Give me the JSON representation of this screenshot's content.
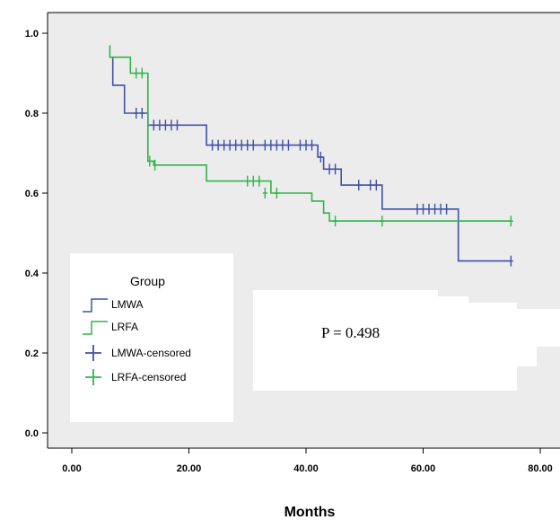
{
  "chart_data": {
    "type": "line",
    "subtype": "kaplan-meier",
    "title": "",
    "xlabel": "Months",
    "ylabel": "",
    "xlim": [
      -5,
      80
    ],
    "ylim": [
      -0.05,
      1.05
    ],
    "x_ticks": [
      "0.00",
      "20.00",
      "40.00",
      "60.00",
      "80.00"
    ],
    "y_ticks": [
      "0.0",
      "0.2",
      "0.4",
      "0.6",
      "0.8",
      "1.0"
    ],
    "grid": false,
    "legend": {
      "title": "Group",
      "position": "bottom-left",
      "entries": [
        "LMWA",
        "LRFA",
        "LMWA-censored",
        "LRFA-censored"
      ]
    },
    "annotation": "P = 0.498",
    "colors": {
      "LMWA": "#3f51a8",
      "LRFA": "#2fb54a",
      "background": "#ececec"
    },
    "series": [
      {
        "name": "LMWA",
        "steps": [
          [
            7,
            0.94
          ],
          [
            7,
            0.87
          ],
          [
            9,
            0.87
          ],
          [
            9,
            0.8
          ],
          [
            13,
            0.8
          ],
          [
            13,
            0.77
          ],
          [
            23,
            0.77
          ],
          [
            23,
            0.72
          ],
          [
            42,
            0.72
          ],
          [
            42,
            0.69
          ],
          [
            43,
            0.69
          ],
          [
            43,
            0.66
          ],
          [
            46,
            0.66
          ],
          [
            46,
            0.62
          ],
          [
            53,
            0.62
          ],
          [
            53,
            0.56
          ],
          [
            66,
            0.56
          ],
          [
            66,
            0.43
          ],
          [
            75,
            0.43
          ]
        ],
        "censored": [
          [
            11,
            0.8
          ],
          [
            12,
            0.8
          ],
          [
            14,
            0.77
          ],
          [
            15,
            0.77
          ],
          [
            16,
            0.77
          ],
          [
            17,
            0.77
          ],
          [
            18,
            0.77
          ],
          [
            24,
            0.72
          ],
          [
            25,
            0.72
          ],
          [
            26,
            0.72
          ],
          [
            27,
            0.72
          ],
          [
            28,
            0.72
          ],
          [
            29,
            0.72
          ],
          [
            30,
            0.72
          ],
          [
            31,
            0.72
          ],
          [
            33,
            0.72
          ],
          [
            34,
            0.72
          ],
          [
            35,
            0.72
          ],
          [
            36,
            0.72
          ],
          [
            37,
            0.72
          ],
          [
            39,
            0.72
          ],
          [
            40,
            0.72
          ],
          [
            41,
            0.72
          ],
          [
            42.5,
            0.69
          ],
          [
            44,
            0.66
          ],
          [
            45,
            0.66
          ],
          [
            49,
            0.62
          ],
          [
            51,
            0.62
          ],
          [
            52,
            0.62
          ],
          [
            59,
            0.56
          ],
          [
            60,
            0.56
          ],
          [
            61,
            0.56
          ],
          [
            62,
            0.56
          ],
          [
            63,
            0.56
          ],
          [
            64,
            0.56
          ],
          [
            75,
            0.43
          ]
        ]
      },
      {
        "name": "LRFA",
        "steps": [
          [
            6.5,
            0.97
          ],
          [
            6.5,
            0.94
          ],
          [
            10,
            0.94
          ],
          [
            10,
            0.9
          ],
          [
            13,
            0.9
          ],
          [
            13,
            0.68
          ],
          [
            14,
            0.68
          ],
          [
            14,
            0.67
          ],
          [
            23,
            0.67
          ],
          [
            23,
            0.63
          ],
          [
            34,
            0.63
          ],
          [
            34,
            0.6
          ],
          [
            41,
            0.6
          ],
          [
            41,
            0.58
          ],
          [
            43,
            0.58
          ],
          [
            43,
            0.55
          ],
          [
            44,
            0.55
          ],
          [
            44,
            0.53
          ],
          [
            75,
            0.53
          ]
        ],
        "censored": [
          [
            11,
            0.9
          ],
          [
            12,
            0.9
          ],
          [
            13.3,
            0.68
          ],
          [
            14.2,
            0.67
          ],
          [
            30,
            0.63
          ],
          [
            31,
            0.63
          ],
          [
            32,
            0.63
          ],
          [
            33,
            0.6
          ],
          [
            35,
            0.6
          ],
          [
            45,
            0.53
          ],
          [
            53,
            0.53
          ],
          [
            75,
            0.53
          ]
        ]
      }
    ]
  }
}
